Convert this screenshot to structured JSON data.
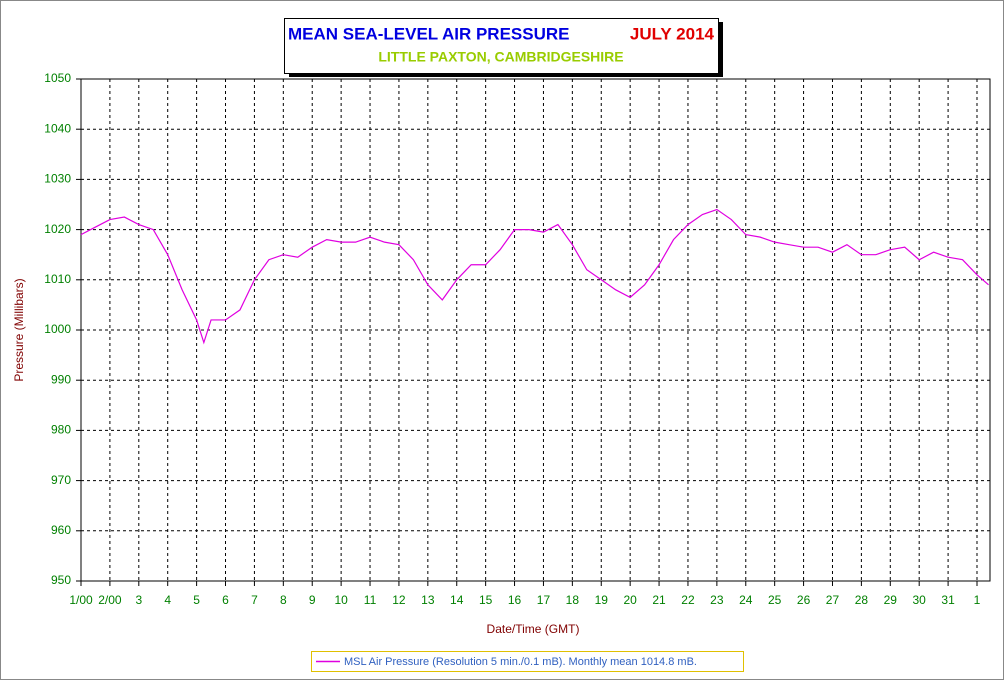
{
  "chart_data": {
    "type": "line",
    "title": "MEAN SEA-LEVEL AIR PRESSURE",
    "title_date": "JULY 2014",
    "subtitle": "LITTLE PAXTON, CAMBRIDGESHIRE",
    "x_label": "Date/Time (GMT)",
    "y_label": "Pressure (Millibars)",
    "x": [
      1,
      1.5,
      2,
      2.5,
      3,
      3.5,
      4,
      4.5,
      5,
      5.25,
      5.5,
      6,
      6.5,
      7,
      7.5,
      8,
      8.5,
      9,
      9.5,
      10,
      10.5,
      11,
      11.5,
      12,
      12.5,
      13,
      13.5,
      14,
      14.5,
      15,
      15.5,
      16,
      16.5,
      17,
      17.5,
      18,
      18.5,
      19,
      19.5,
      20,
      20.5,
      21,
      21.5,
      22,
      22.5,
      23,
      23.5,
      24,
      24.5,
      25,
      25.5,
      26,
      26.5,
      27,
      27.5,
      28,
      28.5,
      29,
      29.5,
      30,
      30.5,
      31,
      31.5,
      32,
      32.4
    ],
    "series": [
      {
        "name": "MSL Air Pressure (Resolution 5 min./0.1 mB). Monthly mean 1014.8 mB.",
        "color": "#e000e0",
        "values": [
          1019,
          1020.5,
          1022,
          1022.5,
          1021,
          1020,
          1015,
          1008,
          1002,
          997.5,
          1002,
          1002,
          1004,
          1010,
          1014,
          1015,
          1014.5,
          1016.5,
          1018,
          1017.5,
          1017.5,
          1018.5,
          1017.5,
          1017,
          1014,
          1009,
          1006,
          1010,
          1013,
          1013,
          1016,
          1020,
          1020,
          1019.5,
          1021,
          1017,
          1012,
          1010,
          1008,
          1006.5,
          1009,
          1013,
          1018,
          1021,
          1023,
          1024,
          1022,
          1019,
          1018.5,
          1017.5,
          1017,
          1016.5,
          1016.5,
          1015.5,
          1017,
          1015,
          1015,
          1016,
          1016.5,
          1014,
          1015.5,
          1014.5,
          1014,
          1011,
          1009
        ]
      }
    ],
    "xlim": [
      1,
      32.45
    ],
    "xticks": [
      {
        "value": 1,
        "label": "1/00"
      },
      {
        "value": 2,
        "label": "2/00"
      },
      3,
      4,
      5,
      6,
      7,
      8,
      9,
      10,
      11,
      12,
      13,
      14,
      15,
      16,
      17,
      18,
      19,
      20,
      21,
      22,
      23,
      24,
      25,
      26,
      27,
      28,
      29,
      30,
      31,
      {
        "value": 32,
        "label": "1"
      }
    ],
    "ylim": [
      950,
      1050
    ],
    "yticks": [
      950,
      960,
      970,
      980,
      990,
      1000,
      1010,
      1020,
      1030,
      1040,
      1050
    ],
    "grid": true
  }
}
